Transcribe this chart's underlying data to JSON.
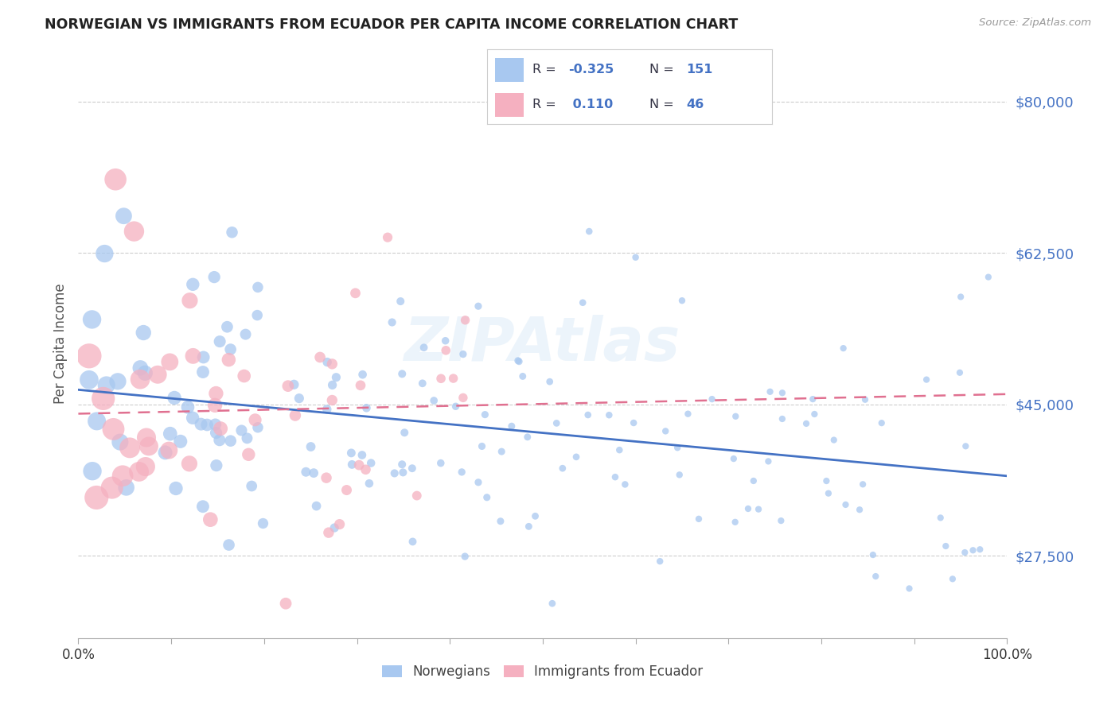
{
  "title": "NORWEGIAN VS IMMIGRANTS FROM ECUADOR PER CAPITA INCOME CORRELATION CHART",
  "source": "Source: ZipAtlas.com",
  "ylabel": "Per Capita Income",
  "ytick_labels": [
    "$27,500",
    "$45,000",
    "$62,500",
    "$80,000"
  ],
  "ytick_values": [
    27500,
    45000,
    62500,
    80000
  ],
  "ymin": 18000,
  "ymax": 86000,
  "xmin": 0.0,
  "xmax": 1.0,
  "blue_color": "#A8C8F0",
  "pink_color": "#F5B0C0",
  "blue_line_color": "#4472C4",
  "pink_line_color": "#E07090",
  "blue_dark": "#4472C4",
  "watermark": "ZIPAtlas",
  "norwegian_r": -0.325,
  "norwegian_n": 151,
  "ecuador_r": 0.11,
  "ecuador_n": 46
}
